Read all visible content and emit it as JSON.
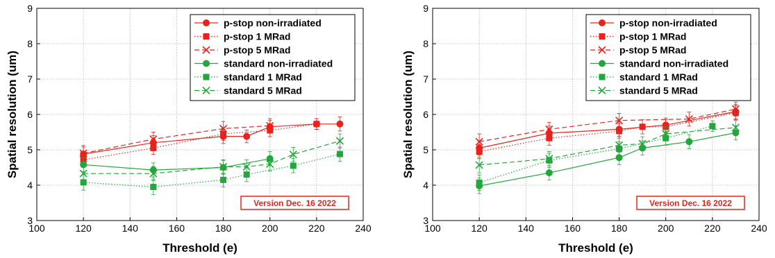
{
  "chart_data": [
    {
      "type": "line",
      "xlabel": "Threshold (e)",
      "ylabel": "Spatial resolution (um)",
      "xlim": [
        100,
        240
      ],
      "ylim": [
        3,
        9
      ],
      "xticks": [
        "100",
        "120",
        "140",
        "160",
        "180",
        "200",
        "220",
        "240"
      ],
      "yticks": [
        "3",
        "4",
        "5",
        "6",
        "7",
        "8",
        "9"
      ],
      "grid": true,
      "legend_position": "top-right",
      "version_label": "Version Dec. 16 2022",
      "series": [
        {
          "name": "p-stop non-irradiated",
          "color": "#e8221c",
          "marker": "circle",
          "dash": "solid",
          "x": [
            120,
            150,
            180,
            190,
            200,
            220,
            230
          ],
          "y": [
            4.88,
            5.2,
            5.38,
            5.38,
            5.65,
            5.73,
            5.73
          ],
          "err": [
            0.2,
            0.2,
            0.2,
            0.18,
            0.18,
            0.15,
            0.2
          ]
        },
        {
          "name": "p-stop 1 MRad",
          "color": "#e8221c",
          "marker": "square",
          "dash": "dotted",
          "x": [
            120,
            150,
            180,
            200,
            220
          ],
          "y": [
            4.72,
            5.05,
            5.45,
            5.55,
            5.73
          ],
          "err": [
            0.2,
            0.18,
            0.18,
            0.18,
            0.15
          ]
        },
        {
          "name": "p-stop 5 MRad",
          "color": "#e8221c",
          "marker": "x",
          "dash": "dashed",
          "x": [
            120,
            150,
            180,
            200
          ],
          "y": [
            4.9,
            5.3,
            5.6,
            5.68
          ],
          "err": [
            0.22,
            0.2,
            0.2,
            0.2
          ]
        },
        {
          "name": "standard non-irradiated",
          "color": "#22a83a",
          "marker": "circle",
          "dash": "solid",
          "x": [
            120,
            150,
            180,
            200
          ],
          "y": [
            4.58,
            4.43,
            4.5,
            4.75
          ],
          "err": [
            0.2,
            0.2,
            0.2,
            0.2
          ]
        },
        {
          "name": "standard 1 MRad",
          "color": "#22a83a",
          "marker": "square",
          "dash": "dotted",
          "x": [
            120,
            150,
            180,
            190,
            210,
            230
          ],
          "y": [
            4.08,
            3.95,
            4.15,
            4.3,
            4.55,
            4.88
          ],
          "err": [
            0.22,
            0.22,
            0.2,
            0.2,
            0.2,
            0.2
          ]
        },
        {
          "name": "standard 5 MRad",
          "color": "#22a83a",
          "marker": "x",
          "dash": "dashed",
          "x": [
            120,
            150,
            180,
            190,
            200,
            210,
            230
          ],
          "y": [
            4.33,
            4.33,
            4.52,
            4.52,
            4.6,
            4.87,
            5.25
          ],
          "err": [
            0.22,
            0.2,
            0.2,
            0.2,
            0.2,
            0.2,
            0.2
          ]
        }
      ]
    },
    {
      "type": "line",
      "xlabel": "Threshold (e)",
      "ylabel": "Spatial resolution (um)",
      "xlim": [
        100,
        240
      ],
      "ylim": [
        3,
        9
      ],
      "xticks": [
        "100",
        "120",
        "140",
        "160",
        "180",
        "200",
        "220",
        "240"
      ],
      "yticks": [
        "3",
        "4",
        "5",
        "6",
        "7",
        "8",
        "9"
      ],
      "grid": true,
      "legend_position": "top-right",
      "version_label": "Version Dec. 16 2022",
      "series": [
        {
          "name": "p-stop non-irradiated",
          "color": "#e8221c",
          "marker": "circle",
          "dash": "solid",
          "x": [
            120,
            150,
            180,
            200,
            230
          ],
          "y": [
            5.05,
            5.47,
            5.58,
            5.7,
            6.08
          ],
          "err": [
            0.2,
            0.2,
            0.2,
            0.2,
            0.2
          ]
        },
        {
          "name": "p-stop 1 MRad",
          "color": "#e8221c",
          "marker": "square",
          "dash": "dotted",
          "x": [
            120,
            150,
            180,
            190,
            200,
            230
          ],
          "y": [
            4.95,
            5.33,
            5.53,
            5.65,
            5.65,
            6.05
          ],
          "err": [
            0.2,
            0.2,
            0.2,
            0.2,
            0.2,
            0.2
          ]
        },
        {
          "name": "p-stop 5 MRad",
          "color": "#e8221c",
          "marker": "x",
          "dash": "dashed",
          "x": [
            120,
            150,
            180,
            210,
            230
          ],
          "y": [
            5.23,
            5.58,
            5.83,
            5.87,
            6.15
          ],
          "err": [
            0.22,
            0.2,
            0.2,
            0.2,
            0.2
          ]
        },
        {
          "name": "standard non-irradiated",
          "color": "#22a83a",
          "marker": "circle",
          "dash": "solid",
          "x": [
            120,
            150,
            180,
            190,
            210,
            230
          ],
          "y": [
            3.98,
            4.35,
            4.78,
            5.05,
            5.23,
            5.48
          ],
          "err": [
            0.22,
            0.2,
            0.2,
            0.2,
            0.2,
            0.2
          ]
        },
        {
          "name": "standard 1 MRad",
          "color": "#22a83a",
          "marker": "square",
          "dash": "dotted",
          "x": [
            120,
            150,
            180,
            200,
            220
          ],
          "y": [
            4.07,
            4.7,
            5.03,
            5.33,
            5.67
          ],
          "err": [
            0.22,
            0.2,
            0.2,
            0.2,
            0.15
          ]
        },
        {
          "name": "standard 5 MRad",
          "color": "#22a83a",
          "marker": "x",
          "dash": "dashed",
          "x": [
            120,
            150,
            180,
            190,
            200,
            230
          ],
          "y": [
            4.57,
            4.75,
            5.13,
            5.17,
            5.45,
            5.63
          ],
          "err": [
            0.22,
            0.2,
            0.2,
            0.2,
            0.2,
            0.2
          ]
        }
      ]
    }
  ]
}
